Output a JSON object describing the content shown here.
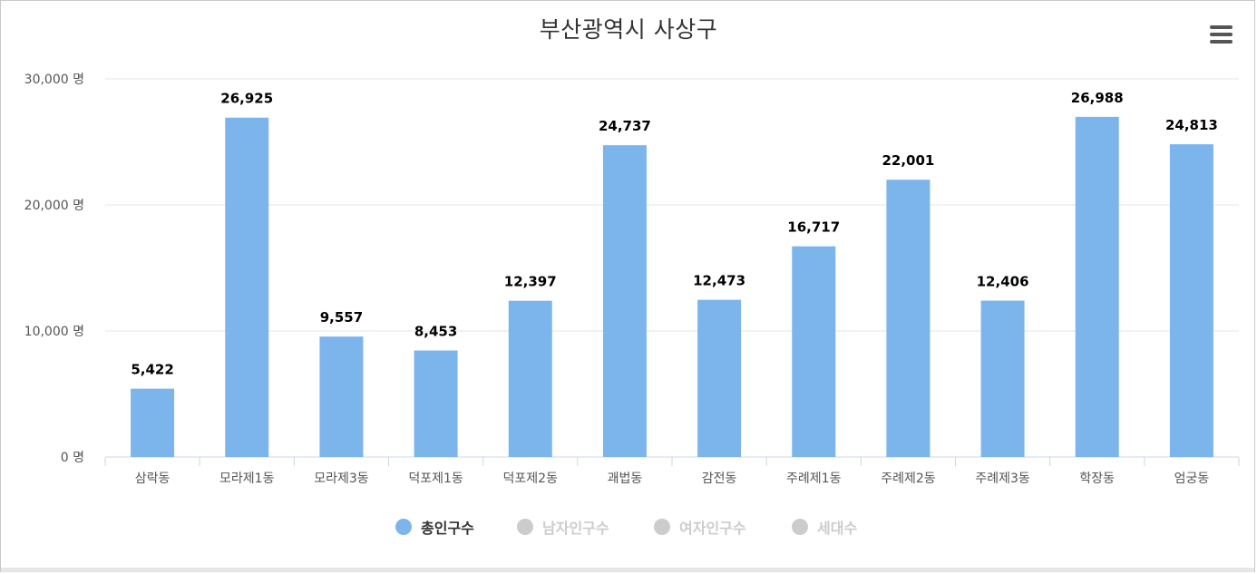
{
  "title": "부산광역시 사상구",
  "menu_icon": "hamburger-icon",
  "colors": {
    "bar": "#7cb5ec",
    "legend_active_text": "#333333",
    "legend_inactive": "#cccccc",
    "grid": "#e6e6e6",
    "axis_label": "#555555"
  },
  "chart_data": {
    "type": "bar",
    "title": "부산광역시 사상구",
    "categories": [
      "삼락동",
      "모라제1동",
      "모라제3동",
      "덕포제1동",
      "덕포제2동",
      "괘법동",
      "감전동",
      "주례제1동",
      "주례제2동",
      "주례제3동",
      "학장동",
      "엄궁동"
    ],
    "series": [
      {
        "name": "총인구수",
        "values": [
          5422,
          26925,
          9557,
          8453,
          12397,
          24737,
          12473,
          16717,
          22001,
          12406,
          26988,
          24813
        ],
        "visible": true
      }
    ],
    "data_labels": [
      "5,422",
      "26,925",
      "9,557",
      "8,453",
      "12,397",
      "24,737",
      "12,473",
      "16,717",
      "22,001",
      "12,406",
      "26,988",
      "24,813"
    ],
    "y_ticks": [
      0,
      10000,
      20000,
      30000
    ],
    "y_tick_labels": [
      "0 명",
      "10,000 명",
      "20,000 명",
      "30,000 명"
    ],
    "ylim": [
      0,
      30000
    ],
    "grid": true,
    "legend_position": "bottom"
  },
  "legend": [
    {
      "label": "총인구수",
      "active": true
    },
    {
      "label": "남자인구수",
      "active": false
    },
    {
      "label": "여자인구수",
      "active": false
    },
    {
      "label": "세대수",
      "active": false
    }
  ]
}
